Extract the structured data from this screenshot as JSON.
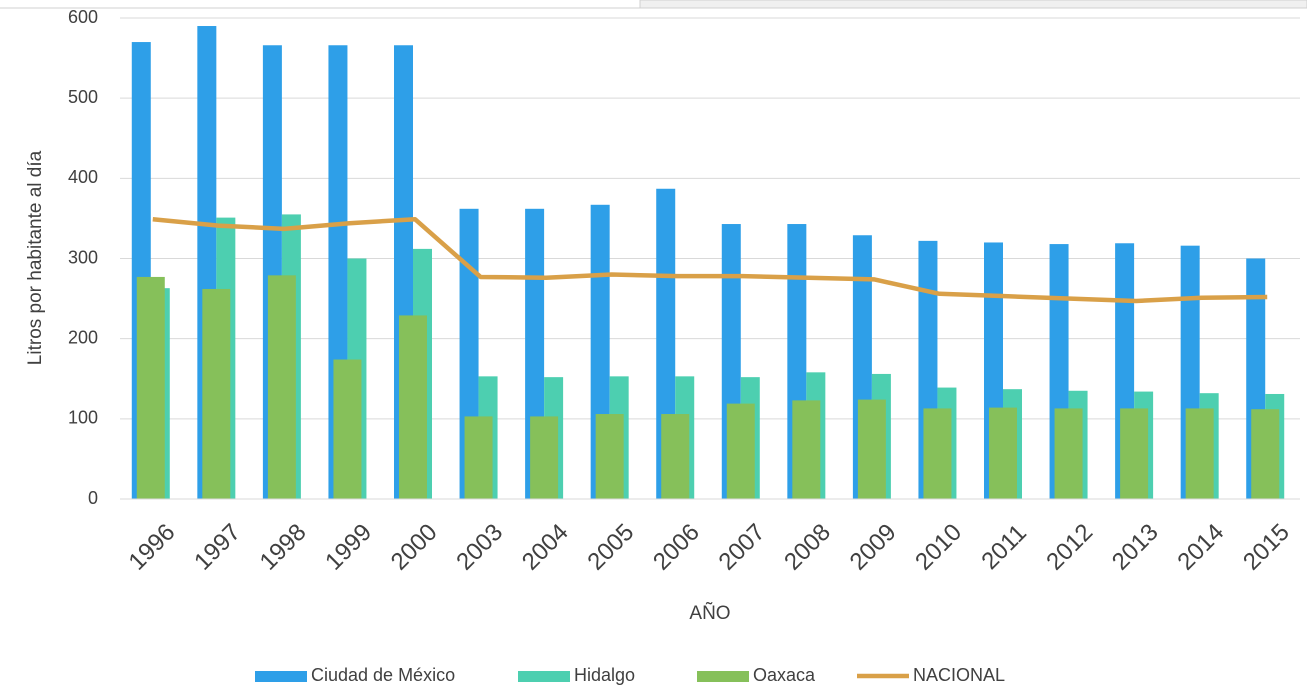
{
  "chart_data": {
    "type": "bar",
    "y_label": "Litros por habitante al día",
    "x_label": "AÑO",
    "categories": [
      "1996",
      "1997",
      "1998",
      "1999",
      "2000",
      "2003",
      "2004",
      "2005",
      "2006",
      "2007",
      "2008",
      "2009",
      "2010",
      "2011",
      "2012",
      "2013",
      "2014",
      "2015"
    ],
    "series": [
      {
        "name": "Ciudad de México",
        "type": "bar",
        "color": "#2e9fe8",
        "values": [
          570,
          590,
          566,
          566,
          566,
          362,
          362,
          367,
          387,
          343,
          343,
          329,
          322,
          320,
          318,
          319,
          316,
          300
        ]
      },
      {
        "name": "Hidalgo",
        "type": "bar",
        "color": "#4dcfb0",
        "values": [
          263,
          351,
          355,
          300,
          312,
          153,
          152,
          153,
          153,
          152,
          158,
          156,
          139,
          137,
          135,
          134,
          132,
          131
        ]
      },
      {
        "name": "Oaxaca",
        "type": "bar",
        "color": "#86c05a",
        "values": [
          277,
          262,
          279,
          174,
          229,
          103,
          103,
          106,
          106,
          119,
          123,
          124,
          113,
          114,
          113,
          113,
          113,
          112
        ]
      },
      {
        "name": "NACIONAL",
        "type": "line",
        "color": "#d9a048",
        "values": [
          349,
          341,
          337,
          344,
          349,
          277,
          276,
          280,
          278,
          278,
          276,
          274,
          256,
          253,
          250,
          247,
          251,
          252
        ]
      }
    ],
    "ylim": [
      0,
      600
    ],
    "yticks": [
      0,
      100,
      200,
      300,
      400,
      500,
      600
    ],
    "grid": true,
    "legend": "bottom"
  }
}
